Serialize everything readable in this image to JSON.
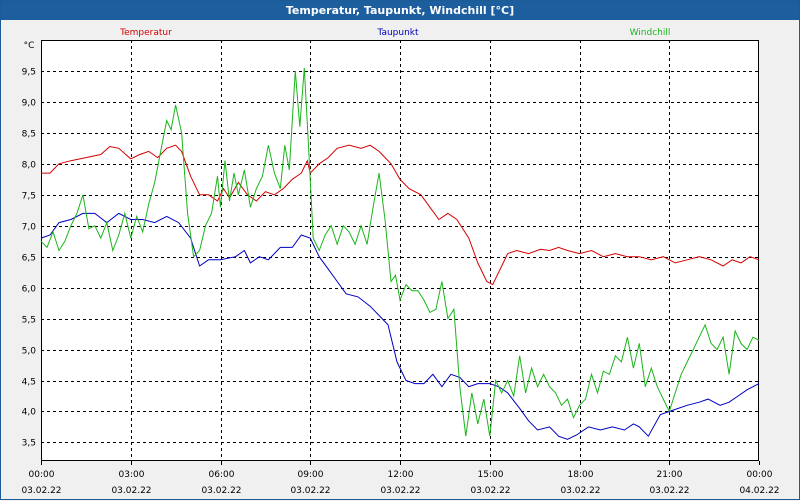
{
  "window": {
    "title": "Temperatur, Taupunkt, Windchill [°C]"
  },
  "colors": {
    "temperatur": "#d40000",
    "taupunkt": "#0000c0",
    "windchill": "#1bb51b",
    "title_bg": "#1d5e9f"
  },
  "chart_data": {
    "type": "line",
    "title": "Temperatur, Taupunkt, Windchill [°C]",
    "ylabel": "°C",
    "xlabel": "",
    "ylim": [
      3.2,
      10.0
    ],
    "xlim": [
      0,
      24
    ],
    "grid": true,
    "y_ticks": [
      3.5,
      4.0,
      4.5,
      5.0,
      5.5,
      6.0,
      6.5,
      7.0,
      7.5,
      8.0,
      8.5,
      9.0,
      9.5
    ],
    "y_tick_labels": [
      "3,5",
      "4,0",
      "4,5",
      "5,0",
      "5,5",
      "6,0",
      "6,5",
      "7,0",
      "7,5",
      "8,0",
      "8,5",
      "9,0",
      "9,5"
    ],
    "x_ticks": [
      {
        "x": 0,
        "time": "00:00",
        "date": "03.02.22"
      },
      {
        "x": 3,
        "time": "03:00",
        "date": "03.02.22"
      },
      {
        "x": 6,
        "time": "06:00",
        "date": "03.02.22"
      },
      {
        "x": 9,
        "time": "09:00",
        "date": "03.02.22"
      },
      {
        "x": 12,
        "time": "12:00",
        "date": "03.02.22"
      },
      {
        "x": 15,
        "time": "15:00",
        "date": "03.02.22"
      },
      {
        "x": 18,
        "time": "18:00",
        "date": "03.02.22"
      },
      {
        "x": 21,
        "time": "21:00",
        "date": "03.02.22"
      },
      {
        "x": 24,
        "time": "00:00",
        "date": "04.02.22"
      }
    ],
    "series": [
      {
        "name": "Temperatur",
        "legend_pos": "top-left",
        "color": "#d40000",
        "points": [
          [
            0,
            7.85
          ],
          [
            0.3,
            7.85
          ],
          [
            0.6,
            8.0
          ],
          [
            1.0,
            8.05
          ],
          [
            1.5,
            8.1
          ],
          [
            2.0,
            8.15
          ],
          [
            2.3,
            8.28
          ],
          [
            2.6,
            8.25
          ],
          [
            3.0,
            8.08
          ],
          [
            3.3,
            8.15
          ],
          [
            3.6,
            8.2
          ],
          [
            3.9,
            8.1
          ],
          [
            4.2,
            8.25
          ],
          [
            4.5,
            8.3
          ],
          [
            4.7,
            8.2
          ],
          [
            5.0,
            7.8
          ],
          [
            5.3,
            7.5
          ],
          [
            5.6,
            7.5
          ],
          [
            5.9,
            7.4
          ],
          [
            6.1,
            7.6
          ],
          [
            6.3,
            7.45
          ],
          [
            6.6,
            7.7
          ],
          [
            6.9,
            7.5
          ],
          [
            7.2,
            7.4
          ],
          [
            7.5,
            7.55
          ],
          [
            7.8,
            7.5
          ],
          [
            8.1,
            7.6
          ],
          [
            8.4,
            7.75
          ],
          [
            8.7,
            7.85
          ],
          [
            8.9,
            8.05
          ],
          [
            9.0,
            7.85
          ],
          [
            9.3,
            8.0
          ],
          [
            9.6,
            8.1
          ],
          [
            9.9,
            8.25
          ],
          [
            10.3,
            8.3
          ],
          [
            10.7,
            8.25
          ],
          [
            11.0,
            8.3
          ],
          [
            11.3,
            8.2
          ],
          [
            11.7,
            8.0
          ],
          [
            12.0,
            7.75
          ],
          [
            12.3,
            7.6
          ],
          [
            12.7,
            7.5
          ],
          [
            13.0,
            7.3
          ],
          [
            13.3,
            7.1
          ],
          [
            13.6,
            7.2
          ],
          [
            13.9,
            7.1
          ],
          [
            14.3,
            6.8
          ],
          [
            14.6,
            6.4
          ],
          [
            14.9,
            6.1
          ],
          [
            15.1,
            6.05
          ],
          [
            15.4,
            6.35
          ],
          [
            15.6,
            6.55
          ],
          [
            15.9,
            6.6
          ],
          [
            16.3,
            6.55
          ],
          [
            16.7,
            6.62
          ],
          [
            17.0,
            6.6
          ],
          [
            17.3,
            6.65
          ],
          [
            17.6,
            6.6
          ],
          [
            18.0,
            6.55
          ],
          [
            18.4,
            6.6
          ],
          [
            18.8,
            6.5
          ],
          [
            19.2,
            6.55
          ],
          [
            19.6,
            6.5
          ],
          [
            20.0,
            6.5
          ],
          [
            20.4,
            6.45
          ],
          [
            20.8,
            6.5
          ],
          [
            21.2,
            6.4
          ],
          [
            21.6,
            6.45
          ],
          [
            22.0,
            6.5
          ],
          [
            22.4,
            6.45
          ],
          [
            22.8,
            6.35
          ],
          [
            23.1,
            6.45
          ],
          [
            23.4,
            6.4
          ],
          [
            23.7,
            6.5
          ],
          [
            24.0,
            6.45
          ]
        ]
      },
      {
        "name": "Taupunkt",
        "legend_pos": "top-center",
        "color": "#0000c0",
        "points": [
          [
            0,
            6.8
          ],
          [
            0.3,
            6.85
          ],
          [
            0.6,
            7.05
          ],
          [
            1.0,
            7.1
          ],
          [
            1.4,
            7.2
          ],
          [
            1.8,
            7.2
          ],
          [
            2.2,
            7.05
          ],
          [
            2.6,
            7.2
          ],
          [
            3.0,
            7.1
          ],
          [
            3.4,
            7.1
          ],
          [
            3.8,
            7.05
          ],
          [
            4.2,
            7.15
          ],
          [
            4.6,
            7.05
          ],
          [
            5.0,
            6.8
          ],
          [
            5.3,
            6.35
          ],
          [
            5.6,
            6.45
          ],
          [
            6.0,
            6.45
          ],
          [
            6.5,
            6.5
          ],
          [
            6.8,
            6.6
          ],
          [
            7.0,
            6.4
          ],
          [
            7.3,
            6.5
          ],
          [
            7.6,
            6.45
          ],
          [
            8.0,
            6.65
          ],
          [
            8.4,
            6.65
          ],
          [
            8.7,
            6.85
          ],
          [
            9.0,
            6.8
          ],
          [
            9.3,
            6.5
          ],
          [
            9.6,
            6.3
          ],
          [
            9.9,
            6.1
          ],
          [
            10.2,
            5.9
          ],
          [
            10.6,
            5.85
          ],
          [
            11.0,
            5.7
          ],
          [
            11.3,
            5.55
          ],
          [
            11.6,
            5.4
          ],
          [
            11.9,
            4.8
          ],
          [
            12.2,
            4.5
          ],
          [
            12.5,
            4.45
          ],
          [
            12.8,
            4.45
          ],
          [
            13.1,
            4.6
          ],
          [
            13.4,
            4.4
          ],
          [
            13.7,
            4.6
          ],
          [
            14.0,
            4.55
          ],
          [
            14.3,
            4.4
          ],
          [
            14.6,
            4.45
          ],
          [
            15.0,
            4.45
          ],
          [
            15.3,
            4.4
          ],
          [
            15.6,
            4.3
          ],
          [
            16.0,
            4.05
          ],
          [
            16.3,
            3.85
          ],
          [
            16.6,
            3.7
          ],
          [
            17.0,
            3.75
          ],
          [
            17.3,
            3.6
          ],
          [
            17.6,
            3.55
          ],
          [
            17.9,
            3.62
          ],
          [
            18.3,
            3.75
          ],
          [
            18.7,
            3.7
          ],
          [
            19.1,
            3.75
          ],
          [
            19.5,
            3.7
          ],
          [
            19.8,
            3.8
          ],
          [
            20.0,
            3.75
          ],
          [
            20.3,
            3.6
          ],
          [
            20.7,
            3.95
          ],
          [
            21.0,
            4.0
          ],
          [
            21.3,
            4.05
          ],
          [
            21.6,
            4.1
          ],
          [
            22.0,
            4.15
          ],
          [
            22.3,
            4.2
          ],
          [
            22.7,
            4.1
          ],
          [
            23.0,
            4.15
          ],
          [
            23.3,
            4.25
          ],
          [
            23.6,
            4.35
          ],
          [
            24.0,
            4.45
          ]
        ]
      },
      {
        "name": "Windchill",
        "legend_pos": "top-right",
        "color": "#1bb51b",
        "points": [
          [
            0,
            6.75
          ],
          [
            0.2,
            6.65
          ],
          [
            0.4,
            6.9
          ],
          [
            0.6,
            6.6
          ],
          [
            0.8,
            6.75
          ],
          [
            1.0,
            7.0
          ],
          [
            1.2,
            7.2
          ],
          [
            1.4,
            7.5
          ],
          [
            1.6,
            6.95
          ],
          [
            1.8,
            7.0
          ],
          [
            2.0,
            6.8
          ],
          [
            2.2,
            7.05
          ],
          [
            2.4,
            6.6
          ],
          [
            2.6,
            6.85
          ],
          [
            2.8,
            7.2
          ],
          [
            3.0,
            6.8
          ],
          [
            3.2,
            7.15
          ],
          [
            3.4,
            6.9
          ],
          [
            3.6,
            7.35
          ],
          [
            3.8,
            7.7
          ],
          [
            4.0,
            8.2
          ],
          [
            4.2,
            8.7
          ],
          [
            4.35,
            8.55
          ],
          [
            4.5,
            8.95
          ],
          [
            4.7,
            8.5
          ],
          [
            4.9,
            7.2
          ],
          [
            5.1,
            6.5
          ],
          [
            5.3,
            6.6
          ],
          [
            5.5,
            7.0
          ],
          [
            5.7,
            7.2
          ],
          [
            5.9,
            7.8
          ],
          [
            6.0,
            7.3
          ],
          [
            6.15,
            8.05
          ],
          [
            6.3,
            7.4
          ],
          [
            6.45,
            7.85
          ],
          [
            6.6,
            7.5
          ],
          [
            6.8,
            7.9
          ],
          [
            7.0,
            7.3
          ],
          [
            7.2,
            7.6
          ],
          [
            7.4,
            7.8
          ],
          [
            7.6,
            8.3
          ],
          [
            7.8,
            7.85
          ],
          [
            8.0,
            7.6
          ],
          [
            8.15,
            8.3
          ],
          [
            8.3,
            7.9
          ],
          [
            8.5,
            9.5
          ],
          [
            8.65,
            8.6
          ],
          [
            8.8,
            9.55
          ],
          [
            8.95,
            8.2
          ],
          [
            9.1,
            6.8
          ],
          [
            9.3,
            6.6
          ],
          [
            9.5,
            6.85
          ],
          [
            9.7,
            7.0
          ],
          [
            9.9,
            6.7
          ],
          [
            10.1,
            7.0
          ],
          [
            10.3,
            6.9
          ],
          [
            10.5,
            6.7
          ],
          [
            10.7,
            7.0
          ],
          [
            10.9,
            6.7
          ],
          [
            11.1,
            7.3
          ],
          [
            11.3,
            7.85
          ],
          [
            11.5,
            7.1
          ],
          [
            11.7,
            6.1
          ],
          [
            11.85,
            6.2
          ],
          [
            12.0,
            5.8
          ],
          [
            12.2,
            6.05
          ],
          [
            12.4,
            5.95
          ],
          [
            12.6,
            5.95
          ],
          [
            12.8,
            5.8
          ],
          [
            13.0,
            5.6
          ],
          [
            13.2,
            5.65
          ],
          [
            13.4,
            6.1
          ],
          [
            13.6,
            5.5
          ],
          [
            13.8,
            5.65
          ],
          [
            14.0,
            4.4
          ],
          [
            14.2,
            3.6
          ],
          [
            14.4,
            4.3
          ],
          [
            14.6,
            3.8
          ],
          [
            14.8,
            4.2
          ],
          [
            15.0,
            3.6
          ],
          [
            15.2,
            4.5
          ],
          [
            15.4,
            4.3
          ],
          [
            15.6,
            4.5
          ],
          [
            15.8,
            4.25
          ],
          [
            16.0,
            4.9
          ],
          [
            16.2,
            4.3
          ],
          [
            16.4,
            4.7
          ],
          [
            16.6,
            4.4
          ],
          [
            16.8,
            4.6
          ],
          [
            17.0,
            4.4
          ],
          [
            17.2,
            4.3
          ],
          [
            17.4,
            4.1
          ],
          [
            17.6,
            4.2
          ],
          [
            17.8,
            3.9
          ],
          [
            18.0,
            4.1
          ],
          [
            18.2,
            4.2
          ],
          [
            18.4,
            4.6
          ],
          [
            18.6,
            4.3
          ],
          [
            18.8,
            4.65
          ],
          [
            19.0,
            4.6
          ],
          [
            19.2,
            4.9
          ],
          [
            19.4,
            4.8
          ],
          [
            19.6,
            5.2
          ],
          [
            19.8,
            4.7
          ],
          [
            20.0,
            5.1
          ],
          [
            20.2,
            4.4
          ],
          [
            20.4,
            4.7
          ],
          [
            20.6,
            4.4
          ],
          [
            20.8,
            4.2
          ],
          [
            21.0,
            4.0
          ],
          [
            21.2,
            4.3
          ],
          [
            21.4,
            4.6
          ],
          [
            21.6,
            4.8
          ],
          [
            21.8,
            5.0
          ],
          [
            22.0,
            5.2
          ],
          [
            22.2,
            5.4
          ],
          [
            22.4,
            5.1
          ],
          [
            22.6,
            5.0
          ],
          [
            22.8,
            5.2
          ],
          [
            23.0,
            4.6
          ],
          [
            23.2,
            5.3
          ],
          [
            23.4,
            5.1
          ],
          [
            23.6,
            5.0
          ],
          [
            23.8,
            5.2
          ],
          [
            24.0,
            5.15
          ]
        ]
      }
    ]
  }
}
